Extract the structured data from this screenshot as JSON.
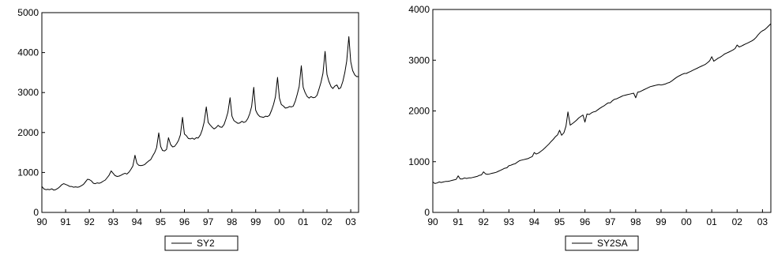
{
  "chart_data": [
    {
      "type": "line",
      "title": "",
      "xlabel": "",
      "ylabel": "",
      "xlim": [
        1990,
        2003.33
      ],
      "ylim": [
        0,
        5000
      ],
      "grid": false,
      "legend": "bottom-center",
      "x_ticks": [
        "90",
        "91",
        "92",
        "93",
        "94",
        "95",
        "96",
        "97",
        "98",
        "99",
        "00",
        "01",
        "02",
        "03"
      ],
      "y_ticks": [
        "0",
        "1000",
        "2000",
        "3000",
        "4000",
        "5000"
      ],
      "series": [
        {
          "name": "SY2",
          "color": "#000000",
          "x": [
            1990.0,
            1990.08,
            1990.17,
            1990.25,
            1990.33,
            1990.42,
            1990.5,
            1990.58,
            1990.67,
            1990.75,
            1990.83,
            1990.92,
            1991.0,
            1991.08,
            1991.17,
            1991.25,
            1991.33,
            1991.42,
            1991.5,
            1991.58,
            1991.67,
            1991.75,
            1991.83,
            1991.92,
            1992.0,
            1992.08,
            1992.17,
            1992.25,
            1992.33,
            1992.42,
            1992.5,
            1992.58,
            1992.67,
            1992.75,
            1992.83,
            1992.92,
            1993.0,
            1993.08,
            1993.17,
            1993.25,
            1993.33,
            1993.42,
            1993.5,
            1993.58,
            1993.67,
            1993.75,
            1993.83,
            1993.92,
            1994.0,
            1994.08,
            1994.17,
            1994.25,
            1994.33,
            1994.42,
            1994.5,
            1994.58,
            1994.67,
            1994.75,
            1994.83,
            1994.92,
            1995.0,
            1995.08,
            1995.17,
            1995.25,
            1995.33,
            1995.42,
            1995.5,
            1995.58,
            1995.67,
            1995.75,
            1995.83,
            1995.92,
            1996.0,
            1996.08,
            1996.17,
            1996.25,
            1996.33,
            1996.42,
            1996.5,
            1996.58,
            1996.67,
            1996.75,
            1996.83,
            1996.92,
            1997.0,
            1997.08,
            1997.17,
            1997.25,
            1997.33,
            1997.42,
            1997.5,
            1997.58,
            1997.67,
            1997.75,
            1997.83,
            1997.92,
            1998.0,
            1998.08,
            1998.17,
            1998.25,
            1998.33,
            1998.42,
            1998.5,
            1998.58,
            1998.67,
            1998.75,
            1998.83,
            1998.92,
            1999.0,
            1999.08,
            1999.17,
            1999.25,
            1999.33,
            1999.42,
            1999.5,
            1999.58,
            1999.67,
            1999.75,
            1999.83,
            1999.92,
            2000.0,
            2000.08,
            2000.17,
            2000.25,
            2000.33,
            2000.42,
            2000.5,
            2000.58,
            2000.67,
            2000.75,
            2000.83,
            2000.92,
            2001.0,
            2001.08,
            2001.17,
            2001.25,
            2001.33,
            2001.42,
            2001.5,
            2001.58,
            2001.67,
            2001.75,
            2001.83,
            2001.92,
            2002.0,
            2002.08,
            2002.17,
            2002.25,
            2002.33,
            2002.42,
            2002.5,
            2002.58,
            2002.67,
            2002.75,
            2002.83,
            2002.92,
            2003.0,
            2003.08,
            2003.17,
            2003.25,
            2003.33
          ],
          "y": [
            650,
            590,
            570,
            580,
            570,
            590,
            560,
            570,
            600,
            640,
            690,
            720,
            700,
            680,
            650,
            650,
            630,
            640,
            630,
            640,
            670,
            700,
            760,
            830,
            820,
            790,
            730,
            720,
            740,
            730,
            750,
            780,
            810,
            870,
            930,
            1040,
            980,
            920,
            900,
            910,
            930,
            960,
            980,
            960,
            1010,
            1080,
            1160,
            1430,
            1230,
            1180,
            1170,
            1180,
            1200,
            1250,
            1290,
            1320,
            1420,
            1500,
            1620,
            1990,
            1650,
            1550,
            1540,
            1580,
            1870,
            1700,
            1640,
            1650,
            1720,
            1800,
            1940,
            2380,
            1960,
            1920,
            1850,
            1840,
            1860,
            1830,
            1870,
            1860,
            1940,
            2070,
            2260,
            2640,
            2250,
            2190,
            2130,
            2090,
            2120,
            2180,
            2140,
            2130,
            2200,
            2340,
            2500,
            2870,
            2410,
            2300,
            2260,
            2230,
            2240,
            2280,
            2250,
            2270,
            2350,
            2470,
            2650,
            3130,
            2560,
            2460,
            2400,
            2390,
            2380,
            2410,
            2400,
            2430,
            2560,
            2700,
            2890,
            3380,
            2860,
            2700,
            2660,
            2610,
            2620,
            2650,
            2640,
            2660,
            2790,
            2960,
            3150,
            3670,
            3130,
            3000,
            2900,
            2860,
            2900,
            2870,
            2880,
            2930,
            3100,
            3260,
            3480,
            4030,
            3450,
            3280,
            3150,
            3100,
            3160,
            3190,
            3090,
            3120,
            3280,
            3500,
            3790,
            4400,
            3770,
            3550,
            3440,
            3400,
            3400
          ]
        }
      ]
    },
    {
      "type": "line",
      "title": "",
      "xlabel": "",
      "ylabel": "",
      "xlim": [
        1990,
        2003.33
      ],
      "ylim": [
        0,
        4000
      ],
      "grid": false,
      "legend": "bottom-center",
      "x_ticks": [
        "90",
        "91",
        "92",
        "93",
        "94",
        "95",
        "96",
        "97",
        "98",
        "99",
        "00",
        "01",
        "02",
        "03"
      ],
      "y_ticks": [
        "0",
        "1000",
        "2000",
        "3000",
        "4000"
      ],
      "series": [
        {
          "name": "SY2SA",
          "color": "#000000",
          "x": [
            1990.0,
            1990.08,
            1990.17,
            1990.25,
            1990.33,
            1990.42,
            1990.5,
            1990.58,
            1990.67,
            1990.75,
            1990.83,
            1990.92,
            1991.0,
            1991.08,
            1991.17,
            1991.25,
            1991.33,
            1991.42,
            1991.5,
            1991.58,
            1991.67,
            1991.75,
            1991.83,
            1991.92,
            1992.0,
            1992.08,
            1992.17,
            1992.25,
            1992.33,
            1992.42,
            1992.5,
            1992.58,
            1992.67,
            1992.75,
            1992.83,
            1992.92,
            1993.0,
            1993.08,
            1993.17,
            1993.25,
            1993.33,
            1993.42,
            1993.5,
            1993.58,
            1993.67,
            1993.75,
            1993.83,
            1993.92,
            1994.0,
            1994.08,
            1994.17,
            1994.25,
            1994.33,
            1994.42,
            1994.5,
            1994.58,
            1994.67,
            1994.75,
            1994.83,
            1994.92,
            1995.0,
            1995.08,
            1995.17,
            1995.25,
            1995.33,
            1995.42,
            1995.5,
            1995.58,
            1995.67,
            1995.75,
            1995.83,
            1995.92,
            1996.0,
            1996.08,
            1996.17,
            1996.25,
            1996.33,
            1996.42,
            1996.5,
            1996.58,
            1996.67,
            1996.75,
            1996.83,
            1996.92,
            1997.0,
            1997.08,
            1997.17,
            1997.25,
            1997.33,
            1997.42,
            1997.5,
            1997.58,
            1997.67,
            1997.75,
            1997.83,
            1997.92,
            1998.0,
            1998.08,
            1998.17,
            1998.25,
            1998.33,
            1998.42,
            1998.5,
            1998.58,
            1998.67,
            1998.75,
            1998.83,
            1998.92,
            1999.0,
            1999.08,
            1999.17,
            1999.25,
            1999.33,
            1999.42,
            1999.5,
            1999.58,
            1999.67,
            1999.75,
            1999.83,
            1999.92,
            2000.0,
            2000.08,
            2000.17,
            2000.25,
            2000.33,
            2000.42,
            2000.5,
            2000.58,
            2000.67,
            2000.75,
            2000.83,
            2000.92,
            2001.0,
            2001.08,
            2001.17,
            2001.25,
            2001.33,
            2001.42,
            2001.5,
            2001.58,
            2001.67,
            2001.75,
            2001.83,
            2001.92,
            2002.0,
            2002.08,
            2002.17,
            2002.25,
            2002.33,
            2002.42,
            2002.5,
            2002.58,
            2002.67,
            2002.75,
            2002.83,
            2002.92,
            2003.0,
            2003.08,
            2003.17,
            2003.25,
            2003.33
          ],
          "y": [
            600,
            570,
            580,
            600,
            590,
            600,
            610,
            610,
            620,
            630,
            640,
            650,
            720,
            660,
            660,
            680,
            670,
            680,
            680,
            690,
            700,
            710,
            730,
            740,
            800,
            760,
            750,
            760,
            770,
            780,
            790,
            810,
            830,
            850,
            870,
            880,
            920,
            930,
            950,
            960,
            990,
            1020,
            1030,
            1040,
            1050,
            1060,
            1080,
            1100,
            1180,
            1150,
            1170,
            1200,
            1230,
            1270,
            1310,
            1350,
            1400,
            1440,
            1490,
            1530,
            1620,
            1520,
            1570,
            1700,
            1980,
            1720,
            1750,
            1780,
            1820,
            1860,
            1890,
            1920,
            1780,
            1940,
            1930,
            1960,
            1980,
            1990,
            2020,
            2050,
            2080,
            2100,
            2130,
            2160,
            2160,
            2200,
            2230,
            2240,
            2260,
            2280,
            2300,
            2310,
            2320,
            2330,
            2340,
            2350,
            2260,
            2370,
            2380,
            2400,
            2420,
            2440,
            2460,
            2480,
            2490,
            2500,
            2510,
            2520,
            2510,
            2520,
            2530,
            2550,
            2560,
            2590,
            2620,
            2650,
            2680,
            2700,
            2720,
            2740,
            2740,
            2760,
            2780,
            2800,
            2820,
            2840,
            2860,
            2880,
            2900,
            2920,
            2950,
            2990,
            3070,
            2980,
            3010,
            3040,
            3060,
            3090,
            3120,
            3140,
            3160,
            3180,
            3200,
            3230,
            3300,
            3260,
            3280,
            3300,
            3320,
            3340,
            3360,
            3380,
            3410,
            3450,
            3500,
            3550,
            3580,
            3600,
            3640,
            3680,
            3720
          ]
        }
      ]
    }
  ]
}
